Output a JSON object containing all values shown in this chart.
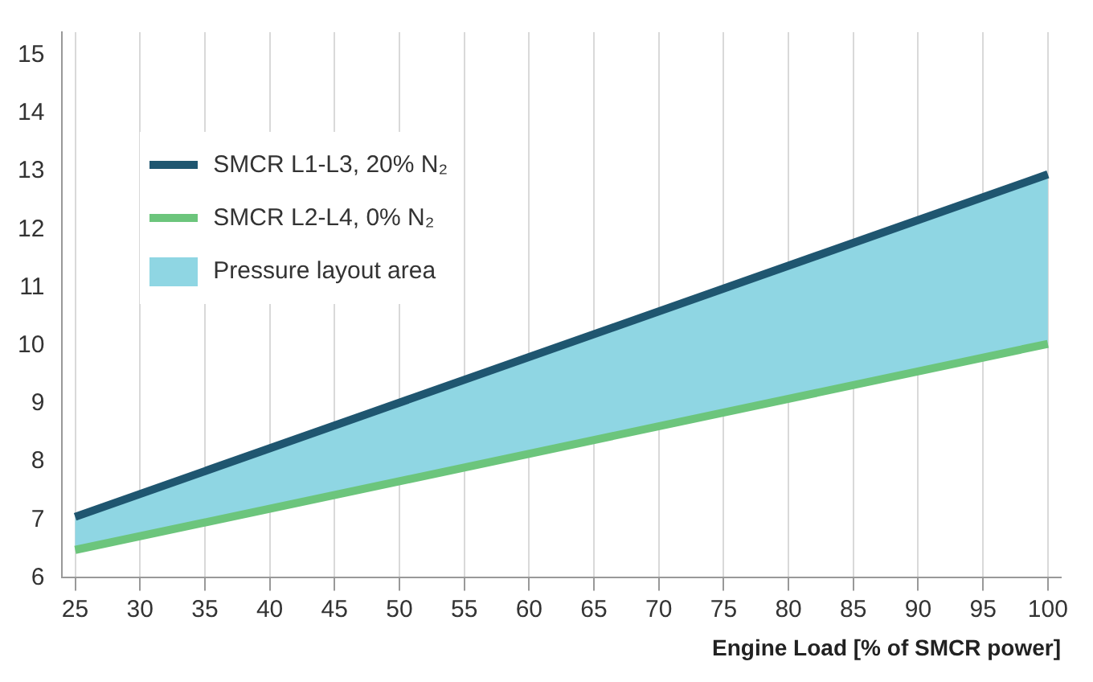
{
  "chart_data": {
    "type": "line",
    "xlabel": "Engine Load [% of SMCR power]",
    "x": [
      25,
      100
    ],
    "series": [
      {
        "name": "SMCR L1-L3, 20% N₂",
        "color": "#1f5670",
        "values": [
          7.05,
          12.95
        ],
        "upper": [
          7.05,
          12.95
        ],
        "lower": [
          6.48,
          10.03
        ]
      },
      {
        "name": "SMCR L2-L4, 0% N₂",
        "color": "#6cc57c",
        "values": [
          6.48,
          10.03
        ]
      },
      {
        "name": "Pressure layout area",
        "type": "area",
        "color": "#8fd6e3",
        "values": [
          null,
          null
        ]
      }
    ],
    "xlim": [
      24,
      101
    ],
    "xticks": [
      25,
      30,
      35,
      40,
      45,
      50,
      55,
      60,
      65,
      70,
      75,
      80,
      85,
      90,
      95,
      100
    ],
    "ylim": [
      6,
      15.4
    ],
    "yticks": [
      6,
      7,
      8,
      9,
      10,
      11,
      12,
      13,
      14,
      15
    ],
    "grid": "x",
    "legend": "top left",
    "marker": "none",
    "line_style": "solid"
  }
}
